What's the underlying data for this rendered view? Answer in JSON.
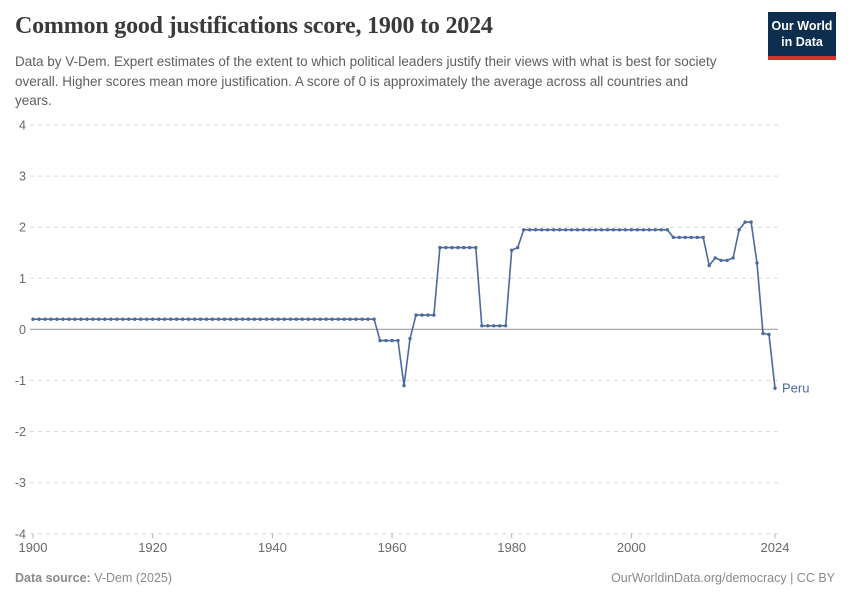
{
  "header": {
    "title": "Common good justifications score, 1900 to 2024",
    "subtitle": "Data by V-Dem. Expert estimates of the extent to which political leaders justify their views with what is best for society overall. Higher scores mean more justification. A score of 0 is approximately the average across all countries and years.",
    "logo": {
      "line1": "Our World",
      "line2": "in Data",
      "bg_color": "#0d2e4e",
      "bar_color": "#d0342c"
    }
  },
  "chart_data": {
    "type": "line",
    "title": "Common good justifications score, 1900 to 2024",
    "xlabel": "",
    "ylabel": "",
    "xlim": [
      1900,
      2024
    ],
    "ylim": [
      -4,
      4
    ],
    "x_ticks": [
      1900,
      1920,
      1940,
      1960,
      1980,
      2000,
      2024
    ],
    "y_ticks": [
      4,
      3,
      2,
      1,
      0,
      -1,
      -2,
      -3,
      -4
    ],
    "grid": "dashed-horizontal",
    "zero_line": true,
    "legend_position": "end-of-line-label",
    "axis_color": "#696969",
    "gridline_color": "#d9d9d9",
    "zero_line_color": "#a8a8a8",
    "series": [
      {
        "name": "Peru",
        "color": "#4c6a9e",
        "start_year": 1900,
        "values": [
          0.2,
          0.2,
          0.2,
          0.2,
          0.2,
          0.2,
          0.2,
          0.2,
          0.2,
          0.2,
          0.2,
          0.2,
          0.2,
          0.2,
          0.2,
          0.2,
          0.2,
          0.2,
          0.2,
          0.2,
          0.2,
          0.2,
          0.2,
          0.2,
          0.2,
          0.2,
          0.2,
          0.2,
          0.2,
          0.2,
          0.2,
          0.2,
          0.2,
          0.2,
          0.2,
          0.2,
          0.2,
          0.2,
          0.2,
          0.2,
          0.2,
          0.2,
          0.2,
          0.2,
          0.2,
          0.2,
          0.2,
          0.2,
          0.2,
          0.2,
          0.2,
          0.2,
          0.2,
          0.2,
          0.2,
          0.2,
          0.2,
          0.2,
          -0.22,
          -0.22,
          -0.22,
          -0.22,
          -1.1,
          -0.18,
          0.28,
          0.28,
          0.28,
          0.28,
          1.6,
          1.6,
          1.6,
          1.6,
          1.6,
          1.6,
          1.6,
          0.07,
          0.07,
          0.07,
          0.07,
          0.07,
          1.55,
          1.6,
          1.95,
          1.95,
          1.95,
          1.95,
          1.95,
          1.95,
          1.95,
          1.95,
          1.95,
          1.95,
          1.95,
          1.95,
          1.95,
          1.95,
          1.95,
          1.95,
          1.95,
          1.95,
          1.95,
          1.95,
          1.95,
          1.95,
          1.95,
          1.95,
          1.95,
          1.8,
          1.8,
          1.8,
          1.8,
          1.8,
          1.8,
          1.25,
          1.4,
          1.35,
          1.35,
          1.4,
          1.95,
          2.1,
          2.1,
          1.3,
          -0.08,
          -0.1,
          -1.15
        ]
      }
    ]
  },
  "footer": {
    "source_label": "Data source:",
    "source_value": " V-Dem (2025)",
    "right_text": "OurWorldinData.org/democracy | CC BY"
  }
}
